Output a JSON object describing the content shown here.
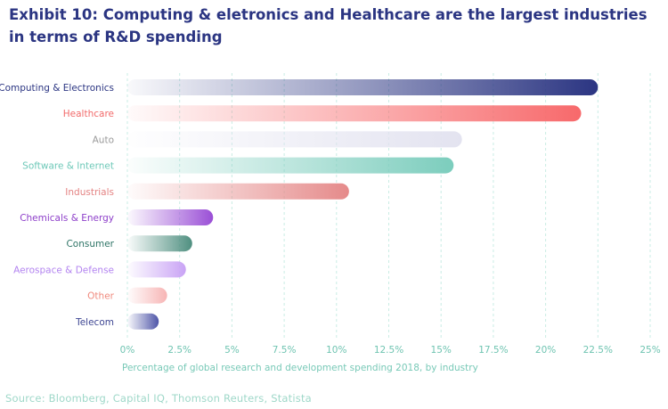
{
  "title": "Exhibit 10: Computing & eletronics and Healthcare are the largest industries in terms of R&D spending",
  "source": "Source: Bloomberg, Capital IQ, Thomson Reuters, Statista",
  "chart_data": {
    "type": "bar",
    "orientation": "horizontal",
    "title": "Exhibit 10: Computing & eletronics and Healthcare are the largest industries in terms of R&D spending",
    "xlabel": "Percentage of global research and development spending 2018, by industry",
    "ylabel": "",
    "xlim": [
      0,
      25
    ],
    "xticks": [
      "0%",
      "2.5%",
      "5%",
      "7.5%",
      "10%",
      "12.5%",
      "15%",
      "17.5%",
      "20%",
      "22.5%",
      "25%"
    ],
    "grid": "vertical dashed",
    "categories": [
      "Computing & Electronics",
      "Healthcare",
      "Auto",
      "Software & Internet",
      "Industrials",
      "Chemicals & Energy",
      "Consumer",
      "Aerospace & Defense",
      "Other",
      "Telecom"
    ],
    "values": [
      22.5,
      21.7,
      16.0,
      15.6,
      10.6,
      4.1,
      3.1,
      2.8,
      1.9,
      1.5
    ],
    "colors": [
      "#2b3582",
      "#f7696b",
      "#e3e3f0",
      "#7ccdbd",
      "#e58a8a",
      "#9a4fd6",
      "#4f8f80",
      "#c9a3f5",
      "#f7b5b5",
      "#4e55a8"
    ],
    "label_colors": [
      "#2b3582",
      "#f26a6a",
      "#9a9a9a",
      "#6fc9b9",
      "#e48383",
      "#8d3ec9",
      "#2f7567",
      "#b384f0",
      "#f08a7e",
      "#3e4693"
    ]
  }
}
